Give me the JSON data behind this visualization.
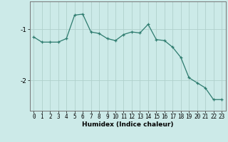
{
  "xlabel": "Humidex (Indice chaleur)",
  "ylabel": "",
  "x": [
    0,
    1,
    2,
    3,
    4,
    5,
    6,
    7,
    8,
    9,
    10,
    11,
    12,
    13,
    14,
    15,
    16,
    17,
    18,
    19,
    20,
    21,
    22,
    23
  ],
  "y": [
    -1.15,
    -1.25,
    -1.25,
    -1.25,
    -1.18,
    -0.72,
    -0.7,
    -1.05,
    -1.08,
    -1.18,
    -1.22,
    -1.1,
    -1.05,
    -1.07,
    -0.9,
    -1.2,
    -1.22,
    -1.35,
    -1.55,
    -1.95,
    -2.05,
    -2.15,
    -2.38,
    -2.38
  ],
  "line_color": "#2d7b6e",
  "marker": "+",
  "bg_color": "#cceae8",
  "grid_color": "#b0d0cc",
  "text_color": "#000000",
  "ylim": [
    -2.6,
    -0.45
  ],
  "yticks": [
    -2,
    -1
  ],
  "xticks": [
    0,
    1,
    2,
    3,
    4,
    5,
    6,
    7,
    8,
    9,
    10,
    11,
    12,
    13,
    14,
    15,
    16,
    17,
    18,
    19,
    20,
    21,
    22,
    23
  ],
  "tick_fontsize": 5.5,
  "label_fontsize": 6.5
}
